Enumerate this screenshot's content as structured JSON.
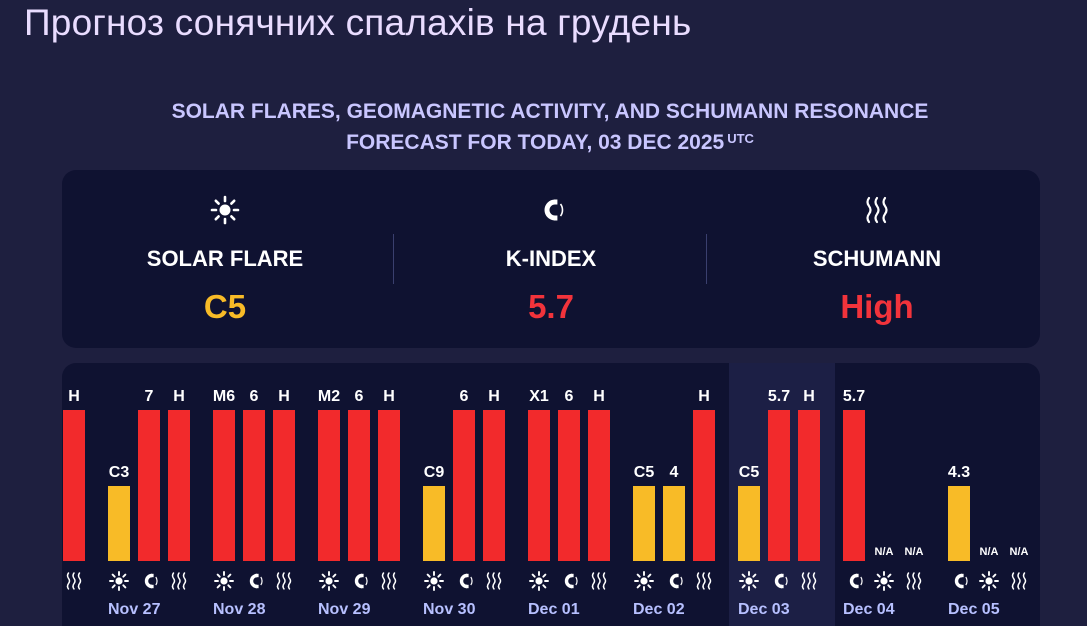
{
  "page": {
    "title": "Прогноз сонячних спалахів на грудень",
    "subtitle_line1": "SOLAR FLARES, GEOMAGNETIC ACTIVITY, AND SCHUMANN RESONANCE",
    "subtitle_line2": "FORECAST FOR TODAY, 03 DEC 2025",
    "subtitle_tz": "UTC"
  },
  "summary": {
    "solar_flare": {
      "label": "SOLAR FLARE",
      "value": "C5",
      "color": "#f8bb27",
      "icon": "sun-icon"
    },
    "k_index": {
      "label": "K-INDEX",
      "value": "5.7",
      "color": "#f2333b",
      "icon": "magnet-icon"
    },
    "schumann": {
      "label": "SCHUMANN",
      "value": "High",
      "color": "#f2333b",
      "icon": "waves-icon"
    }
  },
  "colors": {
    "yellow": "#f8bb27",
    "red": "#f22a2c",
    "background": "#1e1f3f",
    "panel": "#0f1231",
    "highlight": "#1c1f45",
    "date_text": "#b7c0ff"
  },
  "chart_data": {
    "type": "bar",
    "highlight_day": "Dec 03",
    "days": [
      {
        "date": "",
        "bars": [
          {
            "kind": "flare",
            "label": "",
            "level": 0
          },
          {
            "kind": "kindex",
            "label": "",
            "level": 0
          },
          {
            "kind": "schumann",
            "label": "H",
            "level": 1,
            "color": "red"
          }
        ]
      },
      {
        "date": "Nov 27",
        "bars": [
          {
            "kind": "flare",
            "label": "C3",
            "level": 0.5,
            "color": "yellow"
          },
          {
            "kind": "kindex",
            "label": "7",
            "level": 1,
            "color": "red"
          },
          {
            "kind": "schumann",
            "label": "H",
            "level": 1,
            "color": "red"
          }
        ]
      },
      {
        "date": "Nov 28",
        "bars": [
          {
            "kind": "flare",
            "label": "M6",
            "level": 1,
            "color": "red"
          },
          {
            "kind": "kindex",
            "label": "6",
            "level": 1,
            "color": "red"
          },
          {
            "kind": "schumann",
            "label": "H",
            "level": 1,
            "color": "red"
          }
        ]
      },
      {
        "date": "Nov 29",
        "bars": [
          {
            "kind": "flare",
            "label": "M2",
            "level": 1,
            "color": "red"
          },
          {
            "kind": "kindex",
            "label": "6",
            "level": 1,
            "color": "red"
          },
          {
            "kind": "schumann",
            "label": "H",
            "level": 1,
            "color": "red"
          }
        ]
      },
      {
        "date": "Nov 30",
        "bars": [
          {
            "kind": "flare",
            "label": "C9",
            "level": 0.5,
            "color": "yellow"
          },
          {
            "kind": "kindex",
            "label": "6",
            "level": 1,
            "color": "red"
          },
          {
            "kind": "schumann",
            "label": "H",
            "level": 1,
            "color": "red"
          }
        ]
      },
      {
        "date": "Dec 01",
        "bars": [
          {
            "kind": "flare",
            "label": "X1",
            "level": 1,
            "color": "red"
          },
          {
            "kind": "kindex",
            "label": "6",
            "level": 1,
            "color": "red"
          },
          {
            "kind": "schumann",
            "label": "H",
            "level": 1,
            "color": "red"
          }
        ]
      },
      {
        "date": "Dec 02",
        "bars": [
          {
            "kind": "flare",
            "label": "C5",
            "level": 0.5,
            "color": "yellow"
          },
          {
            "kind": "kindex",
            "label": "4",
            "level": 0.5,
            "color": "yellow"
          },
          {
            "kind": "schumann",
            "label": "H",
            "level": 1,
            "color": "red"
          }
        ]
      },
      {
        "date": "Dec 03",
        "bars": [
          {
            "kind": "flare",
            "label": "C5",
            "level": 0.5,
            "color": "yellow"
          },
          {
            "kind": "kindex",
            "label": "5.7",
            "level": 1,
            "color": "red"
          },
          {
            "kind": "schumann",
            "label": "H",
            "level": 1,
            "color": "red"
          }
        ]
      },
      {
        "date": "Dec 04",
        "bars": [
          {
            "kind": "kindex",
            "label": "5.7",
            "level": 1,
            "color": "red"
          },
          {
            "kind": "flare",
            "label": "N/A",
            "level": 0
          },
          {
            "kind": "schumann",
            "label": "N/A",
            "level": 0
          }
        ]
      },
      {
        "date": "Dec 05",
        "bars": [
          {
            "kind": "kindex",
            "label": "4.3",
            "level": 0.5,
            "color": "yellow"
          },
          {
            "kind": "flare",
            "label": "N/A",
            "level": 0
          },
          {
            "kind": "schumann",
            "label": "N/A",
            "level": 0
          }
        ]
      }
    ]
  }
}
